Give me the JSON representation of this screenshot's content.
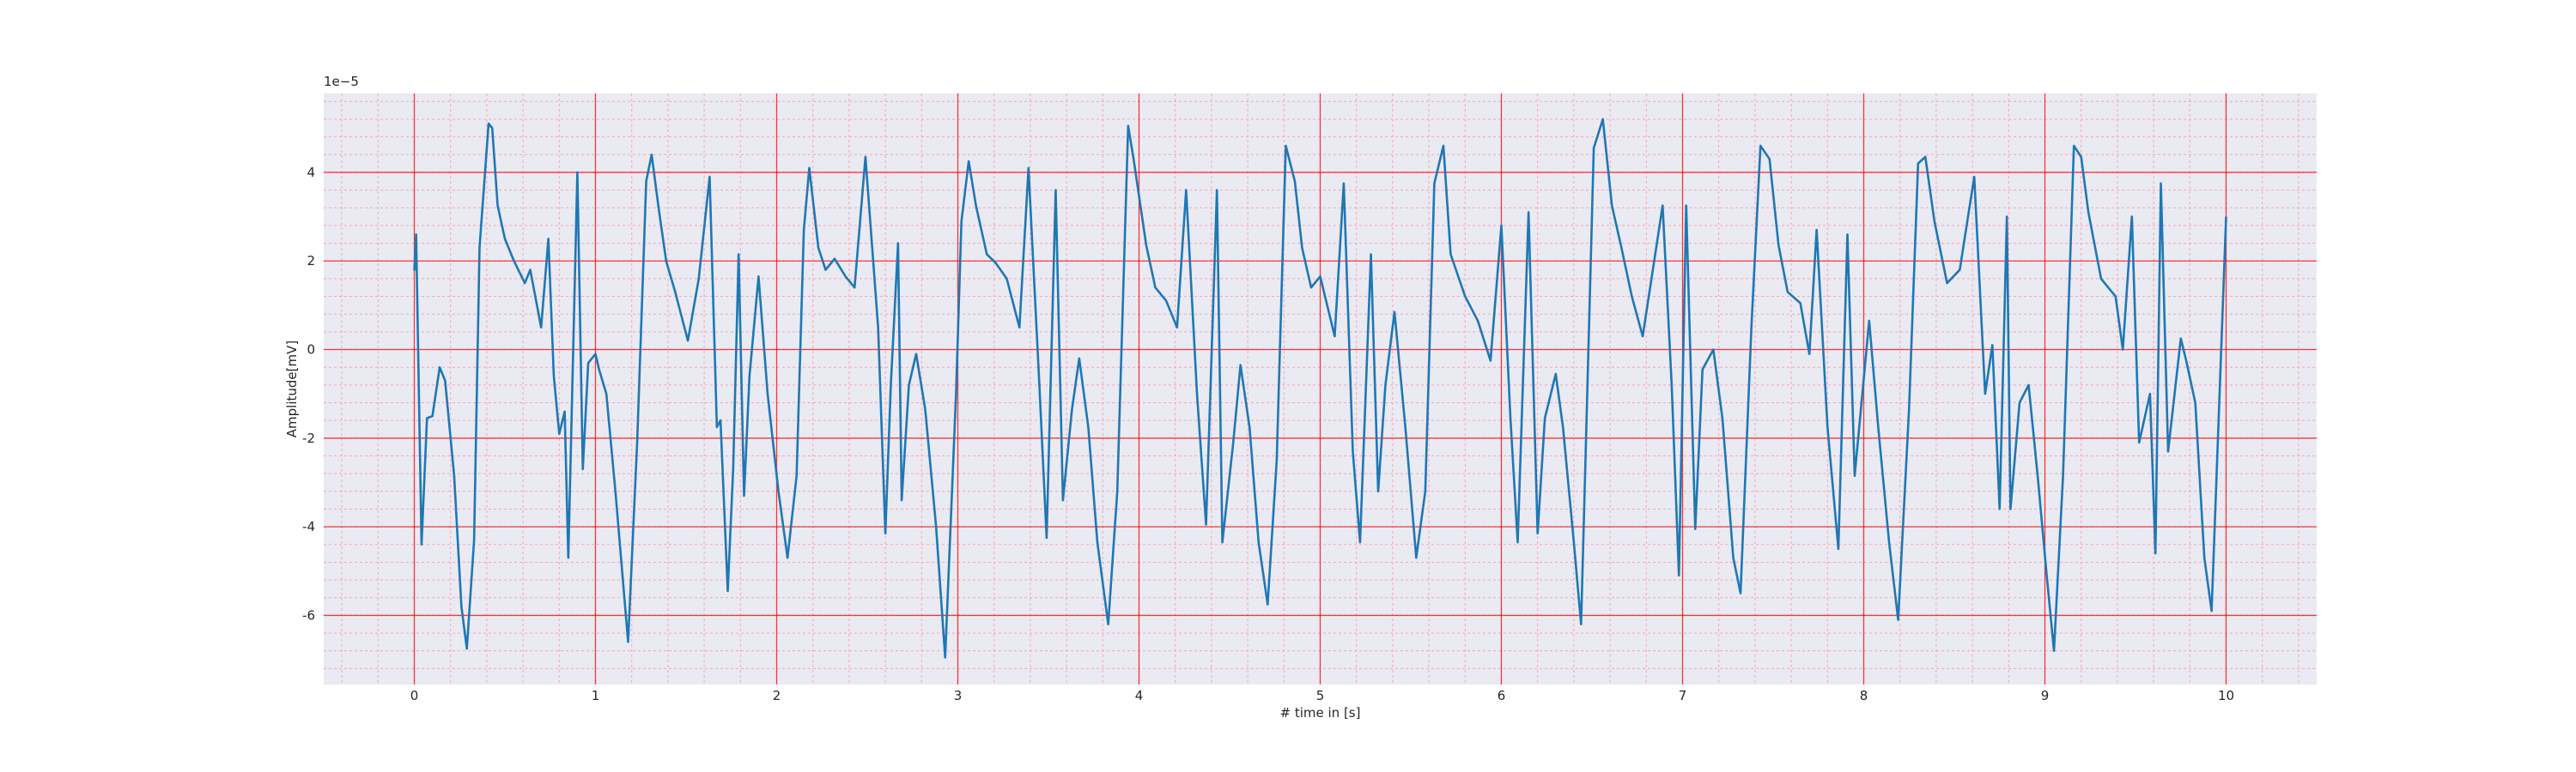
{
  "chart_data": {
    "type": "line",
    "xlabel": "# time in [s]",
    "ylabel": "Amplitude[mV]",
    "offset_text": "1e−5",
    "xlim": [
      -0.5,
      10.5
    ],
    "ylim": [
      -7.56,
      5.78
    ],
    "xticks": [
      0,
      1,
      2,
      3,
      4,
      5,
      6,
      7,
      8,
      9,
      10
    ],
    "yticks": [
      -6,
      -4,
      -2,
      0,
      2,
      4
    ],
    "grid": true,
    "grid_color": "#ff0000",
    "minor_grid": {
      "x_step": 0.2,
      "y_step": 0.4,
      "color": "#f4a6b4"
    },
    "background": "#eaeaf2",
    "series": [
      {
        "color": "#1f77b4",
        "x": [
          0,
          0.01,
          0.04,
          0.07,
          0.1,
          0.14,
          0.17,
          0.22,
          0.26,
          0.29,
          0.33,
          0.36,
          0.41,
          0.43,
          0.46,
          0.5,
          0.55,
          0.61,
          0.64,
          0.7,
          0.74,
          0.77,
          0.8,
          0.83,
          0.85,
          0.9,
          0.93,
          0.96,
          1.0,
          1.02,
          1.06,
          1.11,
          1.18,
          1.23,
          1.28,
          1.31,
          1.35,
          1.39,
          1.44,
          1.51,
          1.57,
          1.63,
          1.67,
          1.69,
          1.73,
          1.76,
          1.79,
          1.82,
          1.85,
          1.9,
          1.95,
          2.01,
          2.06,
          2.11,
          2.15,
          2.18,
          2.23,
          2.27,
          2.32,
          2.38,
          2.43,
          2.49,
          2.56,
          2.6,
          2.63,
          2.67,
          2.69,
          2.73,
          2.77,
          2.82,
          2.88,
          2.93,
          2.99,
          3.02,
          3.06,
          3.1,
          3.16,
          3.21,
          3.27,
          3.34,
          3.39,
          3.45,
          3.49,
          3.54,
          3.58,
          3.63,
          3.67,
          3.72,
          3.77,
          3.83,
          3.88,
          3.94,
          3.97,
          4.04,
          4.09,
          4.15,
          4.21,
          4.26,
          4.32,
          4.37,
          4.43,
          4.46,
          4.52,
          4.56,
          4.61,
          4.66,
          4.71,
          4.76,
          4.81,
          4.86,
          4.9,
          4.95,
          5.0,
          5.08,
          5.13,
          5.18,
          5.22,
          5.28,
          5.32,
          5.36,
          5.41,
          5.47,
          5.53,
          5.58,
          5.63,
          5.68,
          5.72,
          5.8,
          5.87,
          5.94,
          6.0,
          6.05,
          6.09,
          6.15,
          6.2,
          6.24,
          6.3,
          6.34,
          6.4,
          6.44,
          6.51,
          6.56,
          6.61,
          6.66,
          6.72,
          6.78,
          6.89,
          6.94,
          6.98,
          7.02,
          7.07,
          7.11,
          7.17,
          7.22,
          7.28,
          7.32,
          7.38,
          7.43,
          7.48,
          7.53,
          7.58,
          7.65,
          7.7,
          7.74,
          7.8,
          7.86,
          7.91,
          7.95,
          8.03,
          8.08,
          8.14,
          8.19,
          8.25,
          8.3,
          8.34,
          8.39,
          8.46,
          8.53,
          8.61,
          8.67,
          8.71,
          8.75,
          8.79,
          8.81,
          8.86,
          8.91,
          8.96,
          9.01,
          9.05,
          9.1,
          9.16,
          9.2,
          9.24,
          9.31,
          9.39,
          9.43,
          9.48,
          9.52,
          9.58,
          9.61,
          9.64,
          9.68,
          9.75,
          9.78,
          9.83,
          9.88,
          9.92,
          10.0
        ],
        "values": [
          1.78,
          2.6,
          -4.4,
          -1.55,
          -1.5,
          -0.4,
          -0.7,
          -2.85,
          -5.8,
          -6.75,
          -4.3,
          2.3,
          5.1,
          5.0,
          3.25,
          2.5,
          2.0,
          1.5,
          1.8,
          0.5,
          2.5,
          -0.6,
          -1.9,
          -1.4,
          -4.7,
          4.0,
          -2.7,
          -0.3,
          -0.1,
          -0.45,
          -1.0,
          -3.2,
          -6.6,
          -2.1,
          3.8,
          4.4,
          3.15,
          2.0,
          1.3,
          0.2,
          1.6,
          3.9,
          -1.75,
          -1.6,
          -5.45,
          -2.7,
          2.15,
          -3.3,
          -0.6,
          1.65,
          -1.0,
          -3.2,
          -4.7,
          -2.85,
          2.7,
          4.1,
          2.3,
          1.8,
          2.05,
          1.65,
          1.4,
          4.35,
          0.5,
          -4.15,
          -0.8,
          2.4,
          -3.4,
          -0.8,
          -0.1,
          -1.35,
          -4.0,
          -6.95,
          -1.0,
          2.9,
          4.25,
          3.25,
          2.15,
          1.95,
          1.6,
          0.5,
          4.1,
          -0.8,
          -4.25,
          3.6,
          -3.4,
          -1.35,
          -0.2,
          -1.75,
          -4.35,
          -6.2,
          -3.2,
          5.05,
          4.3,
          2.35,
          1.4,
          1.1,
          0.5,
          3.6,
          -1.0,
          -3.95,
          3.6,
          -4.35,
          -2.1,
          -0.35,
          -1.75,
          -4.35,
          -5.75,
          -2.5,
          4.6,
          3.8,
          2.3,
          1.4,
          1.65,
          0.3,
          3.75,
          -2.3,
          -4.35,
          2.15,
          -3.2,
          -0.8,
          0.85,
          -1.75,
          -4.7,
          -3.2,
          3.75,
          4.6,
          2.15,
          1.2,
          0.65,
          -0.25,
          2.8,
          -1.55,
          -4.35,
          3.1,
          -4.15,
          -1.55,
          -0.55,
          -1.75,
          -4.35,
          -6.2,
          4.55,
          5.2,
          3.25,
          2.35,
          1.2,
          0.3,
          3.25,
          -0.8,
          -5.1,
          3.25,
          -4.05,
          -0.45,
          0,
          -1.55,
          -4.7,
          -5.5,
          0.5,
          4.6,
          4.3,
          2.35,
          1.3,
          1.05,
          -0.1,
          2.7,
          -1.75,
          -4.5,
          2.6,
          -2.85,
          0.65,
          -1.75,
          -4.35,
          -6.1,
          -1.35,
          4.2,
          4.35,
          2.9,
          1.5,
          1.8,
          3.9,
          -1.0,
          0.1,
          -3.6,
          3.0,
          -3.6,
          -1.2,
          -0.8,
          -2.85,
          -5.1,
          -6.8,
          -2.85,
          4.6,
          4.35,
          3.1,
          1.6,
          1.2,
          0,
          3.0,
          -2.1,
          -1.0,
          -4.6,
          3.75,
          -2.3,
          0.25,
          -0.25,
          -1.2,
          -4.7,
          -5.9,
          3.0
        ]
      }
    ]
  }
}
